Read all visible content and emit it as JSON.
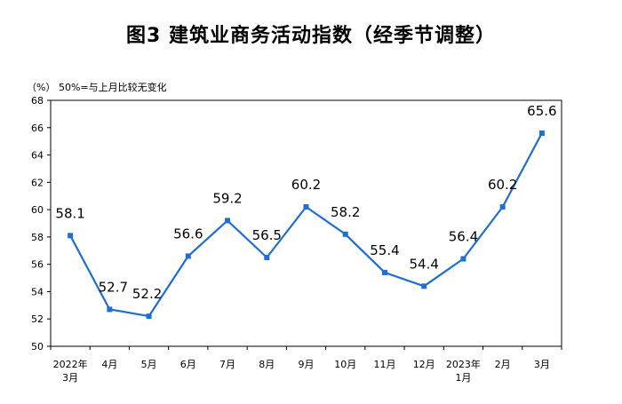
{
  "title": "图3  建筑业商务活动指数（经季节调整）",
  "unit_note": "（%）  50%=与上月比较无变化",
  "colors": {
    "line": "#1f6fd1",
    "axis": "#000000"
  },
  "chart_data": {
    "type": "line",
    "title": "图3  建筑业商务活动指数（经季节调整）",
    "xlabel": "",
    "ylabel": "（%）",
    "ylim": [
      50,
      68
    ],
    "y_ticks": [
      "50",
      "52",
      "54",
      "56",
      "58",
      "60",
      "62",
      "64",
      "66",
      "68"
    ],
    "x_ticks": [
      [
        "2022年",
        "3月"
      ],
      [
        "4月"
      ],
      [
        "5月"
      ],
      [
        "6月"
      ],
      [
        "7月"
      ],
      [
        "8月"
      ],
      [
        "9月"
      ],
      [
        "10月"
      ],
      [
        "11月"
      ],
      [
        "12月"
      ],
      [
        "2023年",
        "1月"
      ],
      [
        "2月"
      ],
      [
        "3月"
      ]
    ],
    "values": [
      58.1,
      52.7,
      52.2,
      56.6,
      59.2,
      56.5,
      60.2,
      58.2,
      55.4,
      54.4,
      56.4,
      60.2,
      65.6
    ],
    "data_labels": [
      "58.1",
      "52.7",
      "52.2",
      "56.6",
      "59.2",
      "56.5",
      "60.2",
      "58.2",
      "55.4",
      "54.4",
      "56.4",
      "60.2",
      "65.6"
    ],
    "grid": false,
    "legend": "none"
  }
}
